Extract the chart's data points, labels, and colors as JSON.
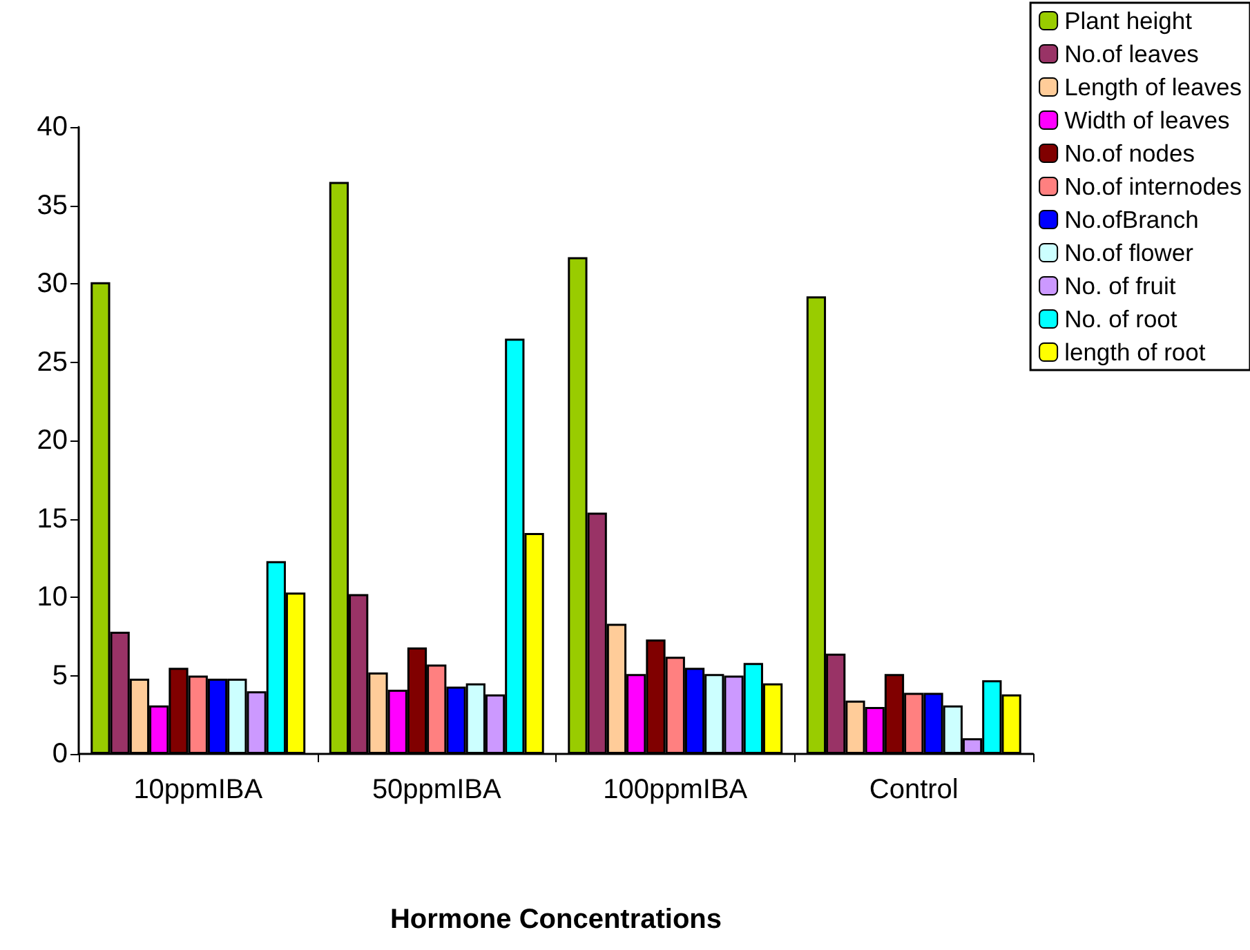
{
  "chart_data": {
    "type": "bar",
    "xlabel": "Hormone Concentrations",
    "categories": [
      "10ppmIBA",
      "50ppmIBA",
      "100ppmIBA",
      "Control"
    ],
    "series": [
      {
        "name": "Plant height",
        "color": "#99cc00",
        "values": [
          30.1,
          36.5,
          31.7,
          29.2
        ]
      },
      {
        "name": "No.of leaves",
        "color": "#993366",
        "values": [
          7.8,
          10.2,
          15.4,
          6.4
        ]
      },
      {
        "name": "Length of leaves",
        "color": "#ffcc99",
        "values": [
          4.8,
          5.2,
          8.3,
          3.4
        ]
      },
      {
        "name": "Width of leaves",
        "color": "#ff00ff",
        "values": [
          3.1,
          4.1,
          5.1,
          3.0
        ]
      },
      {
        "name": "No.of nodes",
        "color": "#800000",
        "values": [
          5.5,
          6.8,
          7.3,
          5.1
        ]
      },
      {
        "name": "No.of internodes",
        "color": "#ff8080",
        "values": [
          5.0,
          5.7,
          6.2,
          3.9
        ]
      },
      {
        "name": "No.ofBranch",
        "color": "#0000ff",
        "values": [
          4.8,
          4.3,
          5.5,
          3.9
        ]
      },
      {
        "name": "No.of flower",
        "color": "#ccffff",
        "values": [
          4.8,
          4.5,
          5.1,
          3.1
        ]
      },
      {
        "name": "No. of fruit",
        "color": "#cc99ff",
        "values": [
          4.0,
          3.8,
          5.0,
          1.0
        ]
      },
      {
        "name": "No. of root",
        "color": "#00ffff",
        "values": [
          12.3,
          26.5,
          5.8,
          4.7
        ]
      },
      {
        "name": "length of root",
        "color": "#ffff00",
        "values": [
          10.3,
          14.1,
          4.5,
          3.8
        ]
      }
    ],
    "ylim": [
      0,
      40
    ],
    "yticks": [
      0,
      5,
      10,
      15,
      20,
      25,
      30,
      35,
      40
    ],
    "grid": false,
    "legend": "top right"
  }
}
